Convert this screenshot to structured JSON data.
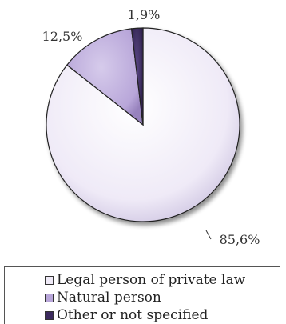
{
  "chart_data": {
    "type": "pie",
    "title": "",
    "categories": [
      "Legal person of private law",
      "Natural person",
      "Other or not specified"
    ],
    "values": [
      85.6,
      12.5,
      1.9
    ],
    "value_labels": [
      "85,6%",
      "12,5%",
      "1,9%"
    ],
    "colors": [
      "#efeaf7",
      "#b8a6d9",
      "#3c2a5e"
    ],
    "legend_position": "bottom",
    "style": "3d-shaded"
  },
  "legend": {
    "items": [
      {
        "label": "Legal person of private law",
        "color": "#efeaf7"
      },
      {
        "label": "Natural person",
        "color": "#b8a6d9"
      },
      {
        "label": "Other or not specified",
        "color": "#3c2a5e"
      }
    ]
  }
}
